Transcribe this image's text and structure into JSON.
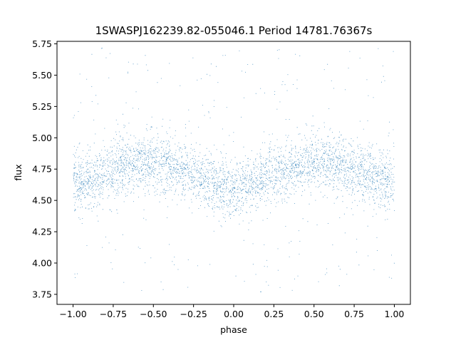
{
  "chart_data": {
    "type": "scatter",
    "title": "1SWASPJ162239.82-055046.1 Period 14781.76367s",
    "xlabel": "phase",
    "ylabel": "flux",
    "xlim": [
      -1.1,
      1.1
    ],
    "ylim": [
      3.67,
      5.77
    ],
    "xticks": [
      -1.0,
      -0.75,
      -0.5,
      -0.25,
      0.0,
      0.25,
      0.5,
      0.75,
      1.0
    ],
    "xtick_labels": [
      "−1.00",
      "−0.75",
      "−0.50",
      "−0.25",
      "0.00",
      "0.25",
      "0.50",
      "0.75",
      "1.00"
    ],
    "yticks": [
      3.75,
      4.0,
      4.25,
      4.5,
      4.75,
      5.0,
      5.25,
      5.5,
      5.75
    ],
    "ytick_labels": [
      "3.75",
      "4.00",
      "4.25",
      "4.50",
      "4.75",
      "5.00",
      "5.25",
      "5.50",
      "5.75"
    ],
    "grid": false,
    "legend": "none",
    "marker_color": "#1f77b4",
    "series": [
      {
        "phase": [
          -1.0,
          -0.9,
          -0.8,
          -0.7,
          -0.6,
          -0.5,
          -0.4,
          -0.3,
          -0.2,
          -0.1,
          0.0,
          0.1,
          0.2,
          0.3,
          0.4,
          0.5,
          0.6,
          0.7,
          0.8,
          0.9,
          1.0
        ],
        "flux_mean": [
          4.62,
          4.66,
          4.72,
          4.77,
          4.8,
          4.8,
          4.78,
          4.74,
          4.68,
          4.62,
          4.58,
          4.62,
          4.68,
          4.74,
          4.78,
          4.8,
          4.8,
          4.77,
          4.72,
          4.66,
          4.62
        ],
        "flux_core_halfwidth": 0.18,
        "flux_range": [
          3.75,
          5.72
        ],
        "phase_range": [
          -1.0,
          1.0
        ]
      }
    ]
  }
}
